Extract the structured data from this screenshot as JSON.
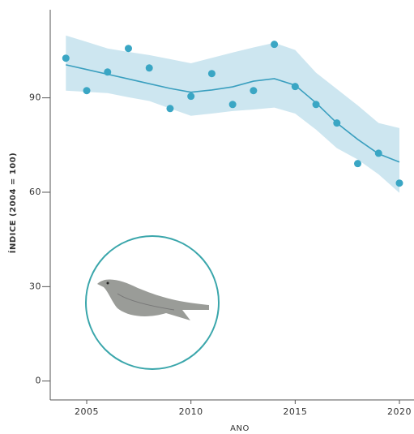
{
  "chart_data": {
    "type": "scatter",
    "x_label": "ANO",
    "y_label": "ÍNDICE (2004 = 100)",
    "xlim": [
      2003.25,
      2020.7
    ],
    "ylim": [
      -6,
      118
    ],
    "xticks": [
      2005,
      2010,
      2015,
      2020
    ],
    "yticks": [
      0,
      30,
      60,
      90
    ],
    "x": [
      2004,
      2005,
      2006,
      2007,
      2008,
      2009,
      2010,
      2011,
      2012,
      2013,
      2014,
      2015,
      2016,
      2017,
      2018,
      2019,
      2020
    ],
    "values": [
      102.6,
      92.3,
      98.2,
      105.7,
      99.5,
      86.6,
      90.5,
      97.7,
      87.9,
      92.3,
      107,
      93.6,
      87.9,
      82,
      69.1,
      72.4,
      62.9
    ],
    "color": "#3aa6c4",
    "trend": {
      "color": "#3a9fbf",
      "values": [
        100.5,
        99,
        97.5,
        96,
        94.5,
        93,
        91.8,
        92.5,
        93.5,
        95.3,
        96.1,
        94,
        88.4,
        82,
        76.8,
        72.2,
        69.6
      ]
    },
    "band": {
      "color": "#cde6f0",
      "upper": [
        109.8,
        107.8,
        105.7,
        104.6,
        103.6,
        102.3,
        101,
        102.7,
        104.4,
        106,
        107.5,
        105.2,
        98,
        92.8,
        87.6,
        82,
        80.4
      ],
      "lower": [
        92.3,
        91.9,
        91.5,
        90.2,
        89,
        86.6,
        84.3,
        85,
        85.8,
        86.3,
        86.9,
        85,
        79.9,
        74,
        70.4,
        65.7,
        59.8
      ]
    }
  }
}
